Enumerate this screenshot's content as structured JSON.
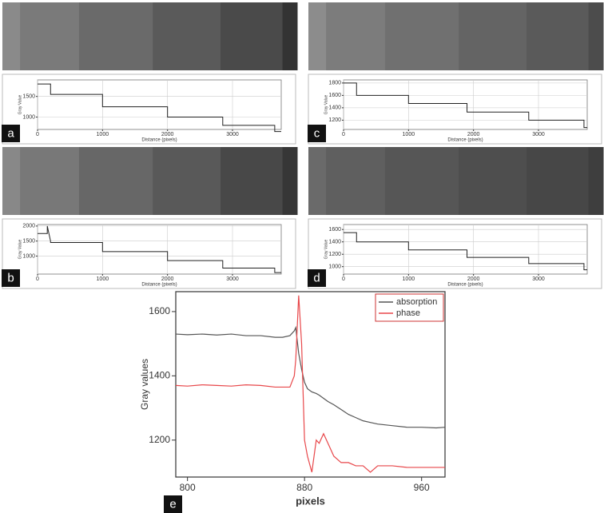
{
  "chart_data": [
    {
      "type": "line",
      "label": "a",
      "x_label": "Distance (pixels)",
      "y_label": "Gray Value",
      "grid": true,
      "x": [
        0,
        200,
        200,
        1000,
        1000,
        2000,
        2000,
        2850,
        2850,
        3650,
        3650,
        3750
      ],
      "series": [
        {
          "color": "#222222",
          "values": [
            1800,
            1800,
            1550,
            1550,
            1250,
            1250,
            1000,
            1000,
            800,
            800,
            650,
            650
          ]
        }
      ],
      "xlim": [
        0,
        3750
      ],
      "ylim": [
        700,
        1900
      ],
      "xticks": [
        0,
        1000,
        2000,
        3000
      ],
      "yticks": [
        1000,
        1500
      ]
    },
    {
      "type": "line",
      "label": "b",
      "x_label": "Distance (pixels)",
      "y_label": "Gray Value",
      "grid": true,
      "x": [
        0,
        150,
        150,
        200,
        200,
        1000,
        1000,
        2000,
        2000,
        2850,
        2850,
        3650,
        3650,
        3750
      ],
      "series": [
        {
          "color": "#222222",
          "values": [
            1750,
            1750,
            2000,
            1500,
            1450,
            1450,
            1150,
            1150,
            850,
            850,
            600,
            600,
            450,
            450
          ]
        }
      ],
      "xlim": [
        0,
        3750
      ],
      "ylim": [
        400,
        2050
      ],
      "xticks": [
        0,
        1000,
        2000,
        3000
      ],
      "yticks": [
        1000,
        1500,
        2000
      ]
    },
    {
      "type": "line",
      "label": "c",
      "x_label": "Distance (pixels)",
      "y_label": "Gray Value",
      "grid": true,
      "x": [
        0,
        200,
        200,
        1000,
        1000,
        1900,
        1900,
        2850,
        2850,
        3700,
        3700,
        3750
      ],
      "series": [
        {
          "color": "#222222",
          "values": [
            1800,
            1800,
            1600,
            1600,
            1470,
            1470,
            1330,
            1330,
            1200,
            1200,
            1080,
            1080
          ]
        }
      ],
      "xlim": [
        0,
        3750
      ],
      "ylim": [
        1050,
        1850
      ],
      "xticks": [
        0,
        1000,
        2000,
        3000
      ],
      "yticks": [
        1200,
        1400,
        1600,
        1800
      ]
    },
    {
      "type": "line",
      "label": "d",
      "x_label": "Distance (pixels)",
      "y_label": "Gray Value",
      "grid": true,
      "x": [
        0,
        200,
        200,
        1000,
        1000,
        1900,
        1900,
        2850,
        2850,
        3700,
        3700,
        3750
      ],
      "series": [
        {
          "color": "#222222",
          "values": [
            1550,
            1550,
            1400,
            1400,
            1270,
            1270,
            1150,
            1150,
            1050,
            1050,
            950,
            950
          ]
        }
      ],
      "xlim": [
        0,
        3750
      ],
      "ylim": [
        880,
        1680
      ],
      "xticks": [
        0,
        1000,
        2000,
        3000
      ],
      "yticks": [
        1000,
        1200,
        1400,
        1600
      ]
    },
    {
      "type": "line",
      "label": "e",
      "x_label": "pixels",
      "y_label": "Gray values",
      "grid": false,
      "x": [
        792,
        800,
        810,
        820,
        830,
        840,
        850,
        860,
        865,
        870,
        873,
        874,
        876,
        878,
        880,
        882,
        885,
        888,
        890,
        893,
        896,
        900,
        905,
        910,
        915,
        920,
        925,
        930,
        940,
        950,
        960,
        970,
        976
      ],
      "series": [
        {
          "name": "absorption",
          "color": "#555555",
          "values": [
            1530,
            1528,
            1530,
            1527,
            1530,
            1525,
            1525,
            1520,
            1520,
            1525,
            1540,
            1550,
            1470,
            1420,
            1380,
            1360,
            1350,
            1345,
            1340,
            1330,
            1320,
            1310,
            1295,
            1280,
            1270,
            1260,
            1255,
            1250,
            1245,
            1240,
            1240,
            1238,
            1240
          ]
        },
        {
          "name": "phase",
          "color": "#e8474a",
          "values": [
            1370,
            1368,
            1372,
            1370,
            1368,
            1372,
            1370,
            1365,
            1365,
            1365,
            1400,
            1450,
            1650,
            1500,
            1200,
            1150,
            1100,
            1200,
            1190,
            1220,
            1190,
            1150,
            1130,
            1130,
            1120,
            1120,
            1100,
            1120,
            1120,
            1115,
            1115,
            1115,
            1115
          ]
        }
      ],
      "xlim": [
        792,
        976
      ],
      "ylim": [
        1085,
        1662
      ],
      "xticks": [
        800,
        880,
        960
      ],
      "yticks": [
        1200,
        1400,
        1600
      ]
    }
  ]
}
